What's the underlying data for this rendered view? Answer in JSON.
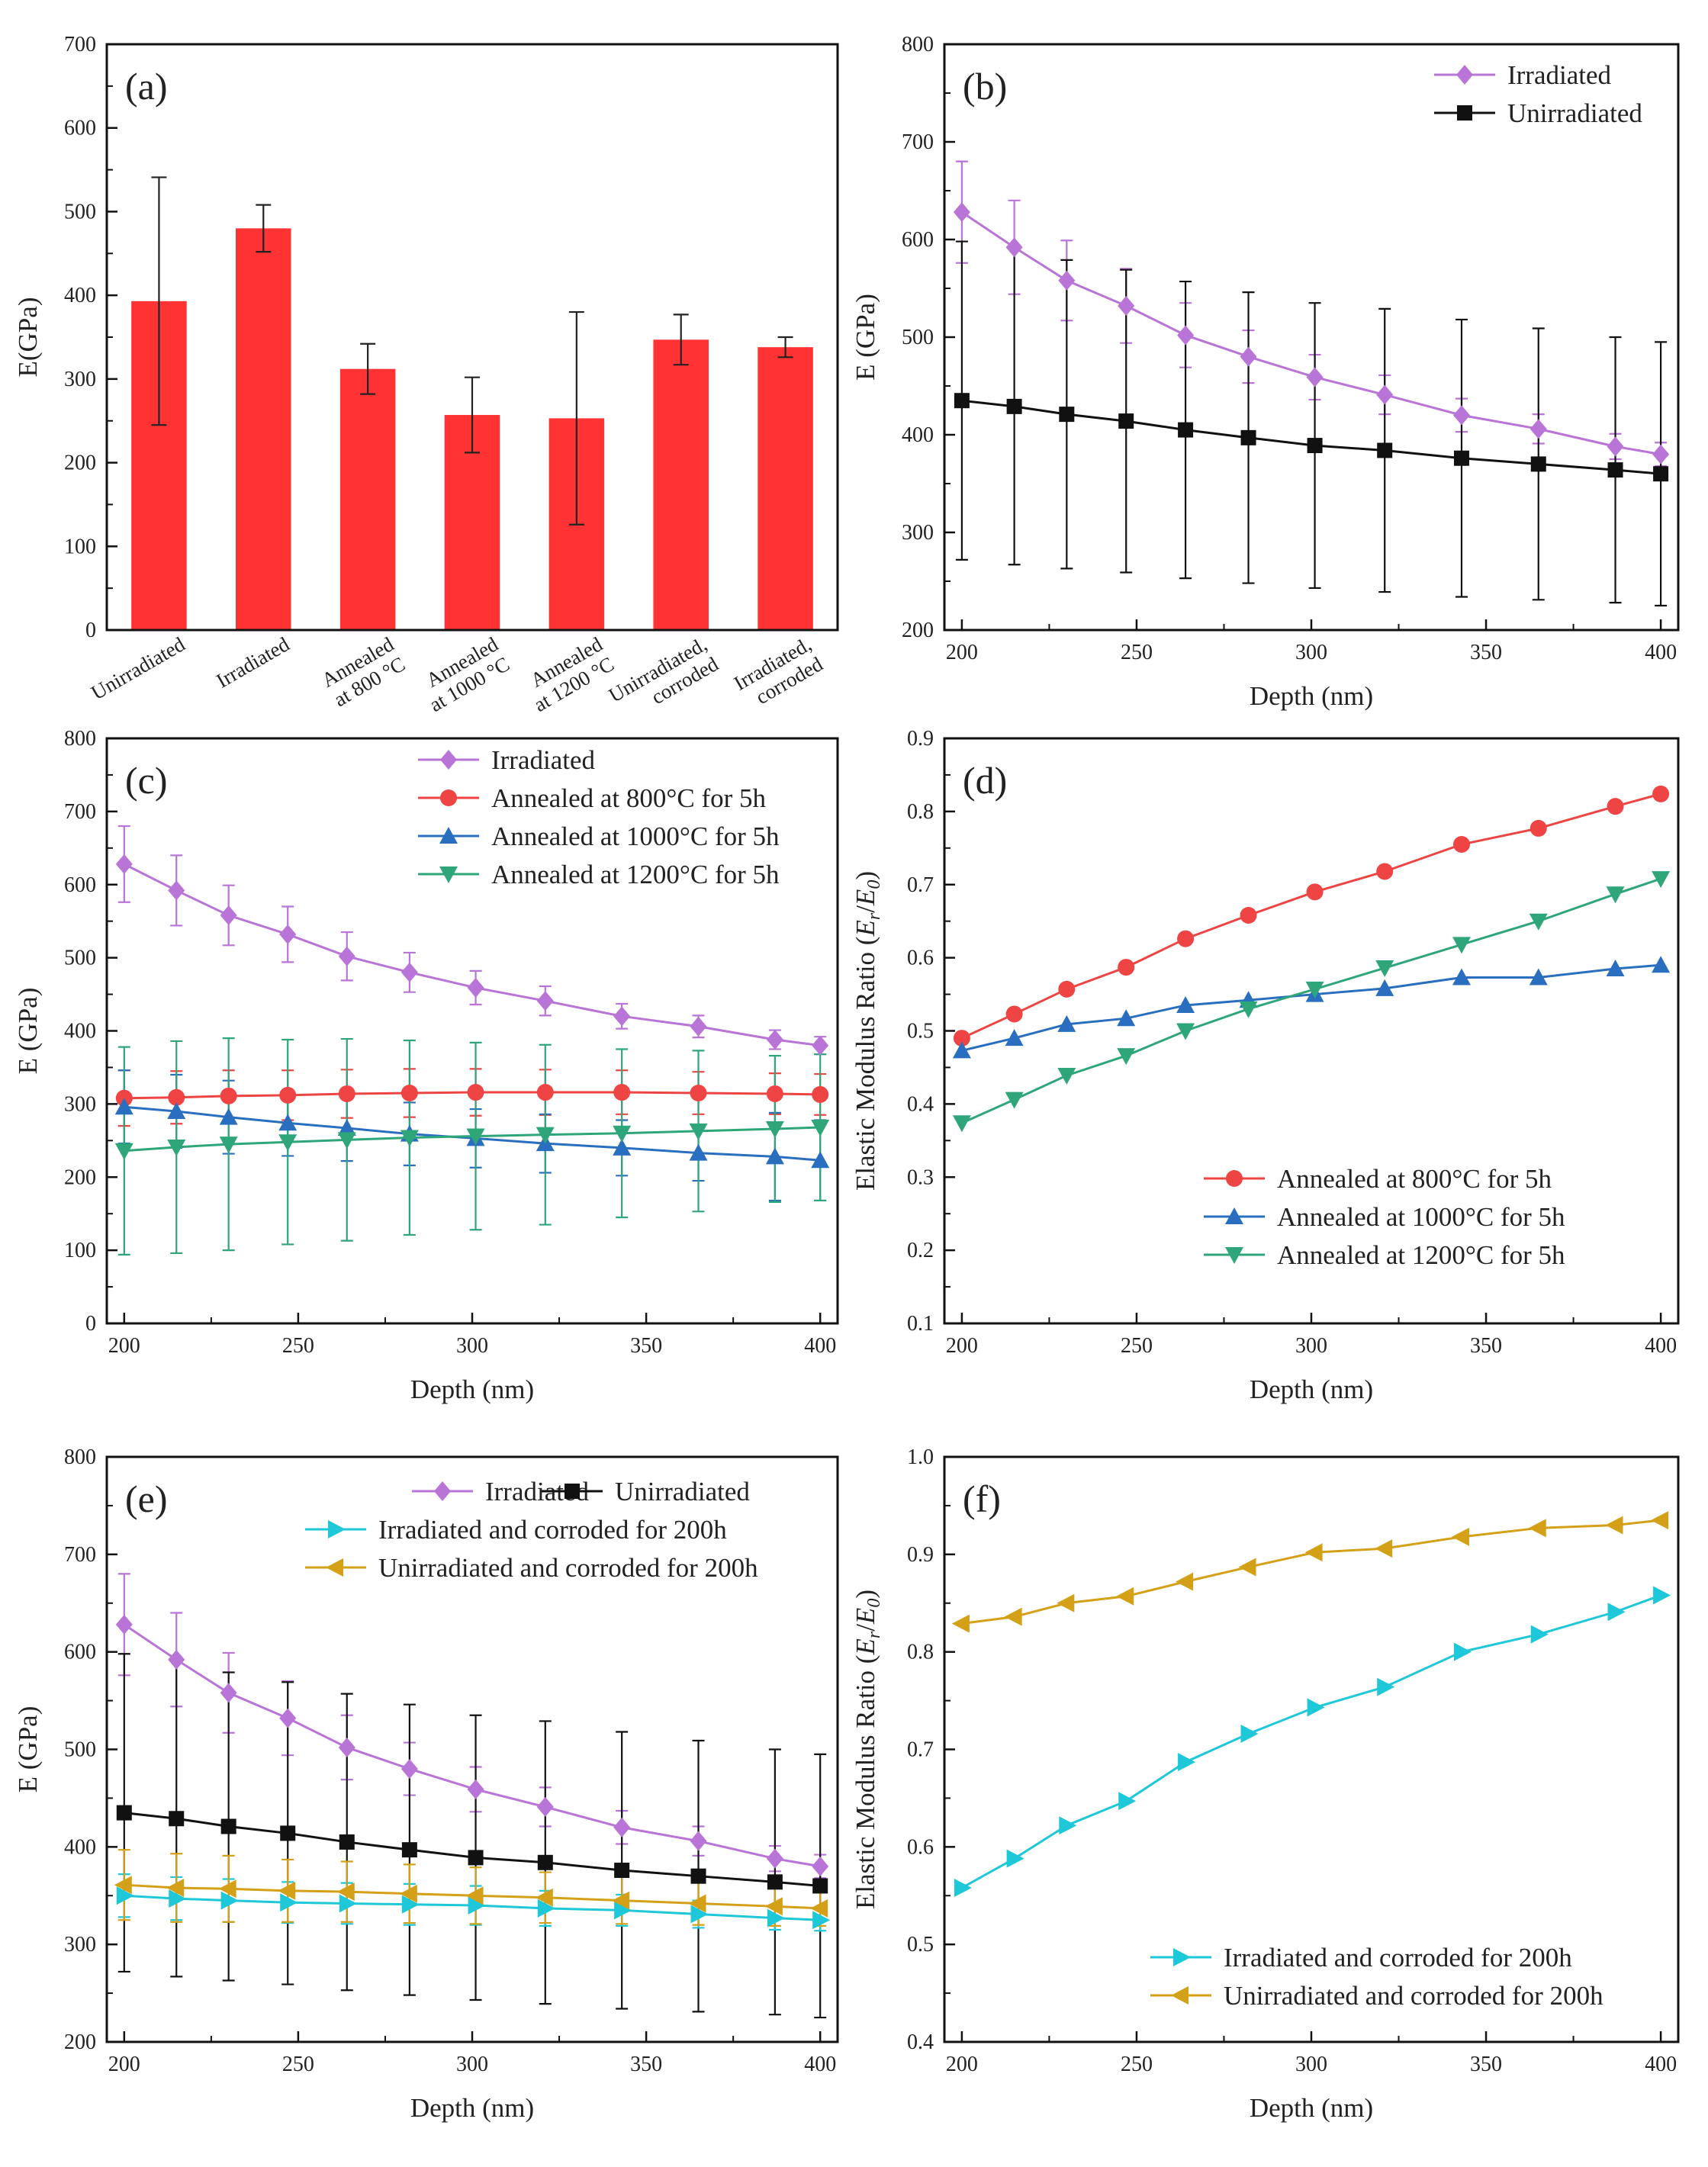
{
  "chart_data": [
    {
      "id": "a",
      "type": "bar",
      "panel_label": "(a)",
      "title": "",
      "xlabel": "",
      "ylabel": "E(GPa)",
      "ylim": [
        0,
        700
      ],
      "yticks": [
        0,
        100,
        200,
        300,
        400,
        500,
        600,
        700
      ],
      "bar_color": "#ff3333",
      "categories": [
        [
          "Unirradiated"
        ],
        [
          "Irradiated"
        ],
        [
          "Annealed",
          "at 800 °C"
        ],
        [
          "Annealed",
          "at 1000 °C"
        ],
        [
          "Annealed",
          "at 1200 °C"
        ],
        [
          "Unirradiated,",
          "corroded"
        ],
        [
          "Irradiated,",
          "corroded"
        ]
      ],
      "values": [
        393,
        480,
        312,
        257,
        253,
        347,
        338
      ],
      "errors": [
        148,
        28,
        30,
        45,
        127,
        30,
        12
      ]
    },
    {
      "id": "b",
      "type": "line",
      "panel_label": "(b)",
      "xlabel": "Depth (nm)",
      "ylabel": "E (GPa)",
      "xlim": [
        195,
        405
      ],
      "xticks": [
        200,
        250,
        300,
        350,
        400
      ],
      "ylim": [
        200,
        800
      ],
      "yticks": [
        200,
        300,
        400,
        500,
        600,
        700,
        800
      ],
      "legend_position": "top-right",
      "series": [
        {
          "name": "Irradiated",
          "color": "#b874d6",
          "marker": "diamond",
          "x": [
            200,
            215,
            230,
            247,
            264,
            282,
            301,
            321,
            343,
            365,
            387,
            400
          ],
          "y": [
            628,
            592,
            558,
            532,
            502,
            480,
            459,
            441,
            420,
            406,
            388,
            380
          ],
          "err": [
            52,
            48,
            41,
            38,
            33,
            27,
            23,
            20,
            17,
            15,
            13,
            12
          ]
        },
        {
          "name": "Unirradiated",
          "color": "#111111",
          "marker": "square",
          "x": [
            200,
            215,
            230,
            247,
            264,
            282,
            301,
            321,
            343,
            365,
            387,
            400
          ],
          "y": [
            435,
            429,
            421,
            414,
            405,
            397,
            389,
            384,
            376,
            370,
            364,
            360
          ],
          "err": [
            163,
            162,
            158,
            155,
            152,
            149,
            146,
            145,
            142,
            139,
            136,
            135
          ]
        }
      ]
    },
    {
      "id": "c",
      "type": "line",
      "panel_label": "(c)",
      "xlabel": "Depth (nm)",
      "ylabel": "E (GPa)",
      "xlim": [
        195,
        405
      ],
      "xticks": [
        200,
        250,
        300,
        350,
        400
      ],
      "ylim": [
        0,
        800
      ],
      "yticks": [
        0,
        100,
        200,
        300,
        400,
        500,
        600,
        700,
        800
      ],
      "legend_position": "top-center",
      "series": [
        {
          "name": "Irradiated",
          "color": "#b874d6",
          "marker": "diamond",
          "x": [
            200,
            215,
            230,
            247,
            264,
            282,
            301,
            321,
            343,
            365,
            387,
            400
          ],
          "y": [
            628,
            592,
            558,
            532,
            502,
            480,
            459,
            441,
            420,
            406,
            388,
            380
          ],
          "err": [
            52,
            48,
            41,
            38,
            33,
            27,
            23,
            20,
            17,
            15,
            13,
            12
          ]
        },
        {
          "name": "Annealed at 800°C for 5h",
          "color": "#ee4444",
          "marker": "circle",
          "x": [
            200,
            215,
            230,
            247,
            264,
            282,
            301,
            321,
            343,
            365,
            387,
            400
          ],
          "y": [
            308,
            309,
            311,
            312,
            314,
            315,
            316,
            316,
            316,
            315,
            314,
            313
          ],
          "err": [
            38,
            36,
            35,
            34,
            33,
            33,
            32,
            31,
            30,
            29,
            28,
            28
          ]
        },
        {
          "name": "Annealed at 1000°C for 5h",
          "color": "#2a6fbf",
          "marker": "triangle-up",
          "x": [
            200,
            215,
            230,
            247,
            264,
            282,
            301,
            321,
            343,
            365,
            387,
            400
          ],
          "y": [
            296,
            290,
            282,
            274,
            267,
            259,
            253,
            246,
            240,
            233,
            228,
            223
          ],
          "err": [
            50,
            50,
            50,
            45,
            45,
            43,
            40,
            40,
            38,
            38,
            60,
            55
          ]
        },
        {
          "name": "Annealed at 1200°C for 5h",
          "color": "#2fa67a",
          "marker": "triangle-down",
          "x": [
            200,
            215,
            230,
            247,
            264,
            282,
            301,
            321,
            343,
            365,
            387,
            400
          ],
          "y": [
            236,
            241,
            245,
            248,
            251,
            254,
            256,
            258,
            260,
            263,
            266,
            268
          ],
          "err": [
            142,
            145,
            145,
            140,
            138,
            133,
            128,
            123,
            115,
            110,
            100,
            100
          ]
        }
      ]
    },
    {
      "id": "d",
      "type": "line",
      "panel_label": "(d)",
      "xlabel": "Depth (nm)",
      "ylabel": "Elastic Modulus Ratio (E_r/E_0)",
      "ylabel_parts": [
        "Elastic Modulus Ratio (",
        "E",
        "r",
        "/",
        "E",
        "0",
        ")"
      ],
      "xlim": [
        195,
        405
      ],
      "xticks": [
        200,
        250,
        300,
        350,
        400
      ],
      "ylim": [
        0.1,
        0.9
      ],
      "yticks": [
        0.1,
        0.2,
        0.3,
        0.4,
        0.5,
        0.6,
        0.7,
        0.8,
        0.9
      ],
      "legend_position": "bottom-right",
      "series": [
        {
          "name": "Annealed at 800°C for 5h",
          "color": "#ee4444",
          "marker": "circle",
          "x": [
            200,
            215,
            230,
            247,
            264,
            282,
            301,
            321,
            343,
            365,
            387,
            400
          ],
          "y": [
            0.49,
            0.523,
            0.557,
            0.587,
            0.626,
            0.658,
            0.69,
            0.718,
            0.755,
            0.777,
            0.807,
            0.824
          ]
        },
        {
          "name": "Annealed at 1000°C for 5h",
          "color": "#2a6fbf",
          "marker": "triangle-up",
          "x": [
            200,
            215,
            230,
            247,
            264,
            282,
            301,
            321,
            343,
            365,
            387,
            400
          ],
          "y": [
            0.473,
            0.49,
            0.509,
            0.517,
            0.535,
            0.542,
            0.55,
            0.558,
            0.573,
            0.573,
            0.585,
            0.59
          ]
        },
        {
          "name": "Annealed at 1200°C for 5h",
          "color": "#2fa67a",
          "marker": "triangle-down",
          "x": [
            200,
            215,
            230,
            247,
            264,
            282,
            301,
            321,
            343,
            365,
            387,
            400
          ],
          "y": [
            0.374,
            0.406,
            0.439,
            0.466,
            0.5,
            0.53,
            0.557,
            0.586,
            0.618,
            0.65,
            0.687,
            0.708
          ]
        }
      ]
    },
    {
      "id": "e",
      "type": "line",
      "panel_label": "(e)",
      "xlabel": "Depth (nm)",
      "ylabel": "E (GPa)",
      "xlim": [
        195,
        405
      ],
      "xticks": [
        200,
        250,
        300,
        350,
        400
      ],
      "ylim": [
        200,
        800
      ],
      "yticks": [
        200,
        300,
        400,
        500,
        600,
        700,
        800
      ],
      "legend_position": "top",
      "series": [
        {
          "name": "Irradiated",
          "color": "#b874d6",
          "marker": "diamond",
          "x": [
            200,
            215,
            230,
            247,
            264,
            282,
            301,
            321,
            343,
            365,
            387,
            400
          ],
          "y": [
            628,
            592,
            558,
            532,
            502,
            480,
            459,
            441,
            420,
            406,
            388,
            380
          ],
          "err": [
            52,
            48,
            41,
            38,
            33,
            27,
            23,
            20,
            17,
            15,
            13,
            12
          ]
        },
        {
          "name": "Unirradiated",
          "color": "#111111",
          "marker": "square",
          "x": [
            200,
            215,
            230,
            247,
            264,
            282,
            301,
            321,
            343,
            365,
            387,
            400
          ],
          "y": [
            435,
            429,
            421,
            414,
            405,
            397,
            389,
            384,
            376,
            370,
            364,
            360
          ],
          "err": [
            163,
            162,
            158,
            155,
            152,
            149,
            146,
            145,
            142,
            139,
            136,
            135
          ]
        },
        {
          "name": "Irradiated and corroded for 200h",
          "color": "#1ec8d8",
          "marker": "triangle-right",
          "x": [
            200,
            215,
            230,
            247,
            264,
            282,
            301,
            321,
            343,
            365,
            387,
            400
          ],
          "y": [
            350,
            347,
            345,
            343,
            342,
            341,
            340,
            337,
            335,
            331,
            327,
            325
          ],
          "err": [
            22,
            22,
            22,
            21,
            21,
            21,
            20,
            18,
            16,
            14,
            12,
            11
          ]
        },
        {
          "name": "Unirradiated and corroded for 200h",
          "color": "#d4a017",
          "marker": "triangle-left",
          "x": [
            200,
            215,
            230,
            247,
            264,
            282,
            301,
            321,
            343,
            365,
            387,
            400
          ],
          "y": [
            361,
            358,
            357,
            355,
            354,
            352,
            350,
            348,
            345,
            342,
            339,
            337
          ],
          "err": [
            36,
            35,
            34,
            32,
            31,
            30,
            29,
            26,
            24,
            22,
            20,
            18
          ]
        }
      ]
    },
    {
      "id": "f",
      "type": "line",
      "panel_label": "(f)",
      "xlabel": "Depth (nm)",
      "ylabel": "Elastic Modulus Ratio (E_r/E_0)",
      "ylabel_parts": [
        "Elastic Modulus Ratio (",
        "E",
        "r",
        "/",
        "E",
        "0",
        ")"
      ],
      "xlim": [
        195,
        405
      ],
      "xticks": [
        200,
        250,
        300,
        350,
        400
      ],
      "ylim": [
        0.4,
        1.0
      ],
      "yticks": [
        0.4,
        0.5,
        0.6,
        0.7,
        0.8,
        0.9,
        1.0
      ],
      "legend_position": "bottom-right",
      "series": [
        {
          "name": "Irradiated and corroded for 200h",
          "color": "#1ec8d8",
          "marker": "triangle-right",
          "x": [
            200,
            215,
            230,
            247,
            264,
            282,
            301,
            321,
            343,
            365,
            387,
            400
          ],
          "y": [
            0.558,
            0.588,
            0.622,
            0.647,
            0.687,
            0.716,
            0.743,
            0.764,
            0.8,
            0.818,
            0.841,
            0.858
          ]
        },
        {
          "name": "Unirradiated and corroded for 200h",
          "color": "#d4a017",
          "marker": "triangle-left",
          "x": [
            200,
            215,
            230,
            247,
            264,
            282,
            301,
            321,
            343,
            365,
            387,
            400
          ],
          "y": [
            0.829,
            0.836,
            0.85,
            0.857,
            0.872,
            0.887,
            0.902,
            0.906,
            0.918,
            0.927,
            0.93,
            0.935
          ]
        }
      ]
    }
  ]
}
